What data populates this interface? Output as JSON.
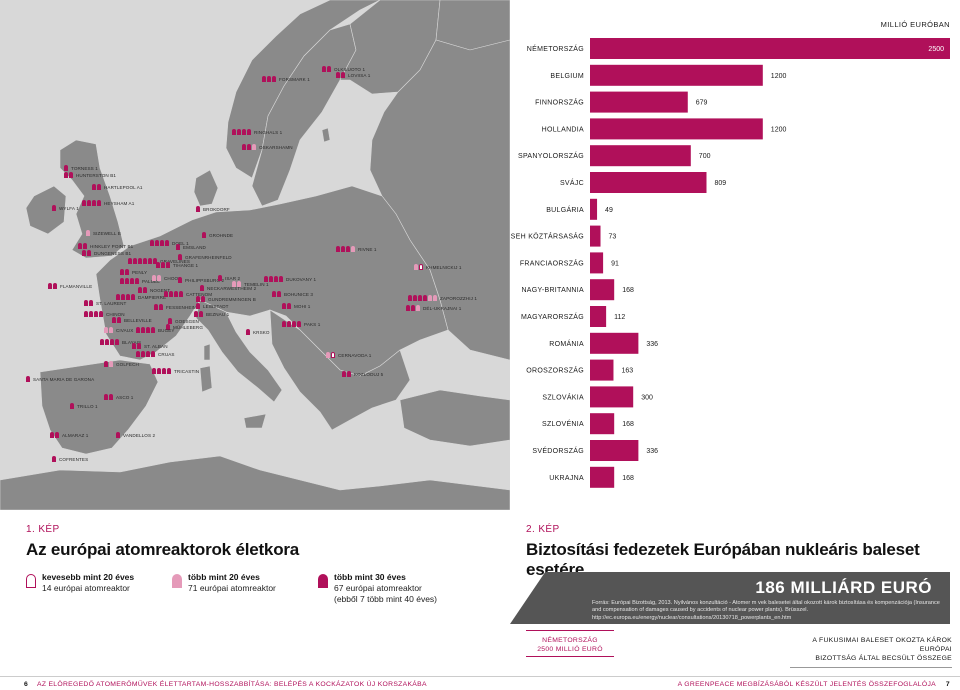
{
  "colors": {
    "accent": "#b0105a",
    "accent_light": "#e59ab9",
    "land": "#8a8a8a",
    "sea": "#d8d8d8",
    "sum_box": "#555555"
  },
  "map": {
    "reactors": [
      {
        "name": "FORSMARK 1",
        "pins": [
          "old",
          "old",
          "old"
        ]
      },
      {
        "name": "OLKILUOTO 1",
        "pins": [
          "old",
          "old"
        ]
      },
      {
        "name": "LOVIISA 1",
        "pins": [
          "old",
          "old"
        ]
      },
      {
        "name": "RINGHALS 1",
        "pins": [
          "old",
          "old",
          "old",
          "old"
        ]
      },
      {
        "name": "OSKARSHAMN",
        "pins": [
          "old",
          "old",
          "mid"
        ]
      },
      {
        "name": "TORNESS 1",
        "pins": [
          "old"
        ]
      },
      {
        "name": "HUNTERSTON B1",
        "pins": [
          "old",
          "old"
        ]
      },
      {
        "name": "HARTLEPOOL A1",
        "pins": [
          "old",
          "old"
        ]
      },
      {
        "name": "HEYSHAM A1",
        "pins": [
          "old",
          "old",
          "old",
          "old"
        ]
      },
      {
        "name": "WYLFA 1",
        "pins": [
          "old"
        ]
      },
      {
        "name": "BROKDORF",
        "pins": [
          "old"
        ]
      },
      {
        "name": "SIZEWELL B",
        "pins": [
          "mid"
        ]
      },
      {
        "name": "GROHNDE",
        "pins": [
          "old"
        ]
      },
      {
        "name": "HINKLEY POINT B1",
        "pins": [
          "old",
          "old"
        ]
      },
      {
        "name": "DOEL 1",
        "pins": [
          "old",
          "old",
          "old",
          "old"
        ]
      },
      {
        "name": "EMSLAND",
        "pins": [
          "old"
        ]
      },
      {
        "name": "DUNGENESS B1",
        "pins": [
          "old",
          "old"
        ]
      },
      {
        "name": "GRAFENRHEINFELD",
        "pins": [
          "old"
        ]
      },
      {
        "name": "GRAVELINES",
        "pins": [
          "old",
          "old",
          "old",
          "old",
          "old",
          "old"
        ]
      },
      {
        "name": "TIHANGE 1",
        "pins": [
          "old",
          "old",
          "old"
        ]
      },
      {
        "name": "RIVNE 1",
        "pins": [
          "old",
          "old",
          "old",
          "mid"
        ]
      },
      {
        "name": "KHMELNICKIJ 1",
        "pins": [
          "mid",
          "young"
        ]
      },
      {
        "name": "FLAMANVILLE",
        "pins": [
          "old",
          "old"
        ]
      },
      {
        "name": "PENLY",
        "pins": [
          "old",
          "old"
        ]
      },
      {
        "name": "PALUEL",
        "pins": [
          "old",
          "old",
          "old",
          "old"
        ]
      },
      {
        "name": "CHOOZ",
        "pins": [
          "mid",
          "mid"
        ]
      },
      {
        "name": "PHILIPPSBURG 2",
        "pins": [
          "old"
        ]
      },
      {
        "name": "ISAR 2",
        "pins": [
          "old"
        ]
      },
      {
        "name": "TEMELIN 1",
        "pins": [
          "mid",
          "mid"
        ]
      },
      {
        "name": "DUKOVANY 1",
        "pins": [
          "old",
          "old",
          "old",
          "old"
        ]
      },
      {
        "name": "NOGENT",
        "pins": [
          "old",
          "old"
        ]
      },
      {
        "name": "NECKARWESTHEIM 2",
        "pins": [
          "old"
        ]
      },
      {
        "name": "DAMPIERRE",
        "pins": [
          "old",
          "old",
          "old",
          "old"
        ]
      },
      {
        "name": "CATTENOM",
        "pins": [
          "old",
          "old",
          "old",
          "old"
        ]
      },
      {
        "name": "GUNDREMMINGEN B",
        "pins": [
          "old",
          "old"
        ]
      },
      {
        "name": "BOHUNICE 3",
        "pins": [
          "old",
          "old"
        ]
      },
      {
        "name": "ZAPOROZZHIJ 1",
        "pins": [
          "old",
          "old",
          "old",
          "old",
          "mid",
          "mid"
        ]
      },
      {
        "name": "ST. LAURENT",
        "pins": [
          "old",
          "old"
        ]
      },
      {
        "name": "FESSENHEIM",
        "pins": [
          "old",
          "old"
        ]
      },
      {
        "name": "LEIBSTADT",
        "pins": [
          "old"
        ]
      },
      {
        "name": "MOHI 1",
        "pins": [
          "old",
          "old"
        ]
      },
      {
        "name": "DÉL-UKRAJNAI 1",
        "pins": [
          "old",
          "old",
          "mid"
        ]
      },
      {
        "name": "CHINON",
        "pins": [
          "old",
          "old",
          "old",
          "old"
        ]
      },
      {
        "name": "BELLEVILLE",
        "pins": [
          "old",
          "old"
        ]
      },
      {
        "name": "BEZNAU 1",
        "pins": [
          "old",
          "old"
        ]
      },
      {
        "name": "GOESGEN",
        "pins": [
          "old"
        ]
      },
      {
        "name": "MÜHLEBERG",
        "pins": [
          "old"
        ]
      },
      {
        "name": "PAKS 1",
        "pins": [
          "old",
          "old",
          "old",
          "old"
        ]
      },
      {
        "name": "CIVAUX",
        "pins": [
          "mid",
          "mid"
        ]
      },
      {
        "name": "BUGEY",
        "pins": [
          "old",
          "old",
          "old",
          "old"
        ]
      },
      {
        "name": "KRSKO",
        "pins": [
          "old"
        ]
      },
      {
        "name": "BLAYAIS",
        "pins": [
          "old",
          "old",
          "old",
          "old"
        ]
      },
      {
        "name": "ST. ALBAN",
        "pins": [
          "old",
          "old"
        ]
      },
      {
        "name": "CRUAS",
        "pins": [
          "old",
          "old",
          "old",
          "old"
        ]
      },
      {
        "name": "CERNAVODA 1",
        "pins": [
          "mid",
          "young"
        ]
      },
      {
        "name": "GOLFECH",
        "pins": [
          "old",
          "mid"
        ]
      },
      {
        "name": "TRICASTIN",
        "pins": [
          "old",
          "old",
          "old",
          "old"
        ]
      },
      {
        "name": "KOZLODUJ 5",
        "pins": [
          "old",
          "old"
        ]
      },
      {
        "name": "SANTA MARIA DE GARONA",
        "pins": [
          "old"
        ]
      },
      {
        "name": "ASCO 1",
        "pins": [
          "old",
          "old"
        ]
      },
      {
        "name": "TRILLO 1",
        "pins": [
          "old"
        ]
      },
      {
        "name": "ALMARAZ 1",
        "pins": [
          "old",
          "old"
        ]
      },
      {
        "name": "VANDELLOS 2",
        "pins": [
          "old"
        ]
      },
      {
        "name": "COFRENTES",
        "pins": [
          "old"
        ]
      }
    ]
  },
  "figure1": {
    "number": "1. KÉP",
    "title": "Az európai atomreaktorok életkora",
    "legend": [
      {
        "icon": "young-reactor-icon",
        "heading": "kevesebb mint 20 éves",
        "desc": "14 európai atomreaktor",
        "desc2": ""
      },
      {
        "icon": "mid-reactor-icon",
        "heading": "több mint 20 éves",
        "desc": "71 európai atomreaktor",
        "desc2": ""
      },
      {
        "icon": "old-reactor-icon",
        "heading": "több mint 30 éves",
        "desc": "67 európai atomreaktor",
        "desc2": "(ebből 7 több mint 40 éves)"
      }
    ]
  },
  "figure2": {
    "number": "2. KÉP",
    "title": "Biztosítási fedezetek Európában nukleáris baleset esetére",
    "unit_label": "MILLIÓ EURÓBAN",
    "total": "186 MILLIÁRD EURÓ",
    "source": "Forrás: Európai Bizottság, 2013. Nyilvános konzultáció - Atomer   m  vek balesetei által okozott károk biztosítása és kompenzációja (Insurance and compensation of damages caused by accidents of nuclear power plants). Brüsszel.  http://ec.europa.eu/energy/nuclear/consultations/20130718_powerplants_en.htm",
    "callout_left": [
      "NÉMETORSZÁG",
      "2500 MILLIÓ EURÓ"
    ],
    "callout_right": [
      "A FUKUSIMAI BALESET OKOZTA KÁROK EURÓPAI",
      "BIZOTTSÁG ÁLTAL BECSÜLT ÖSSZEGE"
    ]
  },
  "chart_data": {
    "type": "bar",
    "title": "Biztosítási fedezetek Európában nukleáris baleset esetére",
    "ylabel": "MILLIÓ EURÓBAN",
    "categories": [
      "NÉMETORSZÁG",
      "BELGIUM",
      "FINNORSZÁG",
      "HOLLANDIA",
      "SPANYOLORSZÁG",
      "SVÁJC",
      "BULGÁRIA",
      "CSEH KÖZTÁRSASÁG",
      "FRANCIAORSZÁG",
      "NAGY-BRITANNIA",
      "MAGYARORSZÁG",
      "ROMÁNIA",
      "OROSZORSZÁG",
      "SZLOVÁKIA",
      "SZLOVÉNIA",
      "SVÉDORSZÁG",
      "UKRAJNA"
    ],
    "values": [
      2500,
      1200,
      679,
      1200,
      700,
      809,
      49,
      73,
      91,
      168,
      112,
      336,
      163,
      300,
      168,
      336,
      168
    ],
    "xlim": [
      0,
      2500
    ],
    "grid": false,
    "legend": "none"
  },
  "footer": {
    "page_left": "6",
    "text_left": "AZ ELÖREGEDŐ ATOMERŐMŰVEK ÉLETTARTAM-HOSSZABBÍTÁSA: BELÉPÉS A KOCKÁZATOK ÚJ KORSZAKÁBA",
    "text_right": "A GREENPEACE MEGBÍZÁSÁBÓL KÉSZÜLT JELENTÉS ÖSSZEFOGLALÓJA",
    "page_right": "7"
  }
}
